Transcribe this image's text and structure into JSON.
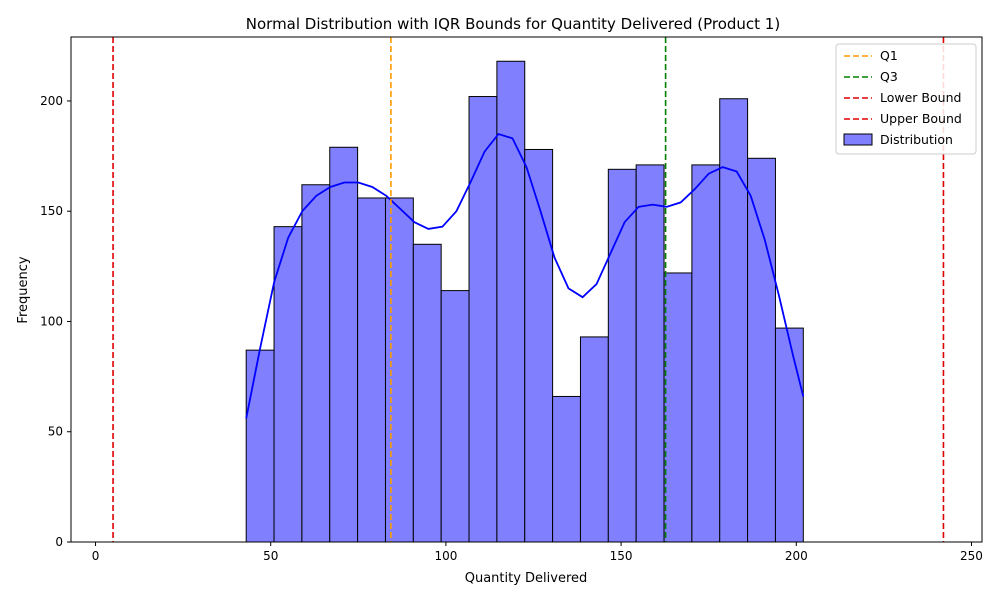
{
  "chart_data": {
    "type": "bar",
    "title": "Normal Distribution with IQR Bounds for Quantity Delivered (Product 1)",
    "xlabel": "Quantity Delivered",
    "ylabel": "Frequency",
    "xlim": [
      -7,
      253
    ],
    "ylim": [
      0,
      229
    ],
    "xticks": [
      0,
      50,
      100,
      150,
      200,
      250
    ],
    "yticks": [
      0,
      50,
      100,
      150,
      200
    ],
    "grid": false,
    "legend_position": "top-right",
    "histogram": {
      "name": "Distribution",
      "color": "#8080ff",
      "edge_color": "#000000",
      "bin_start": 43,
      "bin_width": 7.95,
      "counts": [
        87,
        143,
        162,
        179,
        156,
        156,
        135,
        114,
        202,
        218,
        178,
        66,
        93,
        169,
        171,
        122,
        171,
        201,
        174,
        97
      ]
    },
    "kde": {
      "color": "#0000ff",
      "x": [
        43,
        47,
        51,
        55,
        59,
        63,
        67,
        71,
        75,
        79,
        83,
        87,
        91,
        95,
        99,
        103,
        107,
        111,
        115,
        119,
        123,
        127,
        131,
        135,
        139,
        143,
        147,
        151,
        155,
        159,
        163,
        167,
        171,
        175,
        179,
        183,
        187,
        191,
        195,
        199,
        202
      ],
      "y": [
        56,
        88,
        118,
        138,
        150,
        157,
        161,
        163,
        163,
        161,
        157,
        151,
        145,
        142,
        143,
        150,
        163,
        177,
        185,
        183,
        170,
        150,
        129,
        115,
        111,
        117,
        131,
        145,
        152,
        153,
        152,
        154,
        160,
        167,
        170,
        168,
        157,
        137,
        112,
        85,
        66
      ]
    },
    "reference_lines": [
      {
        "label": "Q1",
        "x": 84.3,
        "color": "#ff9900"
      },
      {
        "label": "Q3",
        "x": 162.7,
        "color": "#008000"
      },
      {
        "label": "Lower Bound",
        "x": 5.0,
        "color": "#e00000"
      },
      {
        "label": "Upper Bound",
        "x": 242.0,
        "color": "#e00000"
      }
    ],
    "legend": [
      "Q1",
      "Q3",
      "Lower Bound",
      "Upper Bound",
      "Distribution"
    ]
  }
}
